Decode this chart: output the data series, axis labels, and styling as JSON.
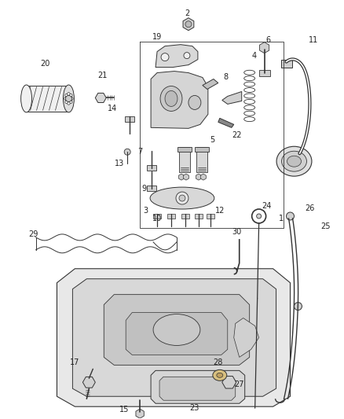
{
  "background_color": "#ffffff",
  "fig_width": 4.38,
  "fig_height": 5.33,
  "dpi": 100,
  "line_color": "#333333",
  "label_color": "#222222",
  "label_fontsize": 7.0
}
